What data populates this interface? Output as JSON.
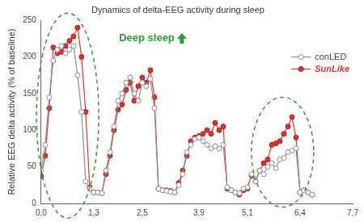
{
  "chart_data": {
    "type": "line",
    "title": "Dynamics of delta-EEG activity during sleep",
    "y_label": "Relative EEG delta activity (% of baseline)",
    "annotations": [
      "Deep sleep"
    ],
    "x": [
      0.0,
      0.1,
      0.2,
      0.3,
      0.4,
      0.5,
      0.6,
      0.7,
      0.8,
      0.9,
      1.0,
      1.1,
      1.2,
      1.3,
      1.4,
      1.5,
      1.6,
      1.7,
      1.8,
      1.9,
      2.0,
      2.1,
      2.2,
      2.3,
      2.4,
      2.5,
      2.6,
      2.7,
      2.8,
      2.9,
      3.0,
      3.1,
      3.2,
      3.3,
      3.4,
      3.5,
      3.6,
      3.7,
      3.8,
      3.9,
      4.0,
      4.1,
      4.2,
      4.3,
      4.4,
      4.5,
      4.6,
      4.7,
      4.8,
      4.9,
      5.0,
      5.1,
      5.2,
      5.3,
      5.4,
      5.5,
      5.6,
      5.7,
      5.8,
      5.9,
      6.0,
      6.1,
      6.2,
      6.3,
      6.4,
      6.5,
      6.6,
      6.7
    ],
    "series": [
      {
        "name": "conLED",
        "color": "#8c8c8c",
        "marker": "open circle",
        "values": [
          45,
          80,
          145,
          195,
          210,
          215,
          205,
          210,
          215,
          175,
          125,
          30,
          20,
          15,
          15,
          14,
          45,
          70,
          105,
          140,
          150,
          165,
          172,
          150,
          140,
          165,
          160,
          170,
          130,
          20,
          18,
          17,
          16,
          15,
          25,
          40,
          70,
          80,
          88,
          90,
          85,
          80,
          75,
          78,
          75,
          80,
          22,
          18,
          15,
          14,
          20,
          22,
          40,
          30,
          45,
          40,
          50,
          55,
          48,
          60,
          62,
          70,
          72,
          75,
          15,
          18,
          15,
          12
        ]
      },
      {
        "name": "SunLike",
        "color": "#e0322b",
        "marker": "circle",
        "values": [
          37,
          65,
          130,
          213,
          205,
          207,
          215,
          222,
          228,
          240,
          200,
          125,
          22,
          15,
          15,
          14,
          40,
          65,
          100,
          128,
          135,
          155,
          165,
          140,
          160,
          172,
          165,
          182,
          145,
          20,
          18,
          18,
          17,
          15,
          28,
          45,
          65,
          85,
          90,
          92,
          95,
          100,
          95,
          110,
          100,
          105,
          20,
          18,
          15,
          12,
          18,
          20,
          38,
          30,
          45,
          55,
          60,
          80,
          82,
          85,
          95,
          105,
          118,
          90,
          15,
          18,
          15,
          12
        ]
      }
    ],
    "xlim": [
      0,
      7.7
    ],
    "xticks": [
      {
        "value": 0,
        "label": "0,0"
      },
      {
        "value": 1.3,
        "label": "1,3"
      },
      {
        "value": 2.5,
        "label": "2,5"
      },
      {
        "value": 3.9,
        "label": "3,9"
      },
      {
        "value": 5.1,
        "label": "5,1"
      },
      {
        "value": 6.4,
        "label": "6,4"
      },
      {
        "value": 7.7,
        "label": "7,7"
      }
    ],
    "ylim": [
      0,
      250
    ],
    "yticks": [
      0,
      50,
      100,
      150,
      200,
      250
    ],
    "grid": false,
    "legend": "right"
  }
}
